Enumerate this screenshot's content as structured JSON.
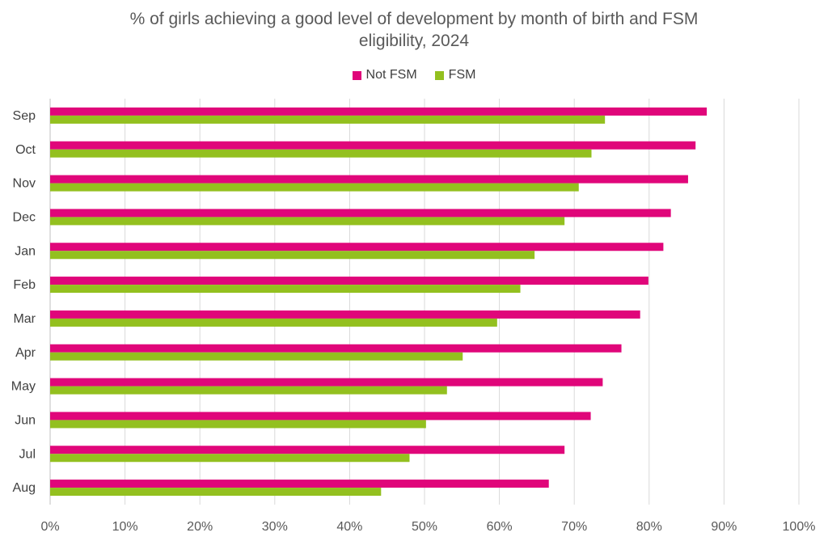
{
  "colors": {
    "not_fsm": "#e0067a",
    "fsm": "#93c01f",
    "grid": "#d9d9d9"
  },
  "chart_data": {
    "type": "bar",
    "orientation": "horizontal",
    "title_lines": [
      "% of girls achieving a good level of development by month of birth and FSM",
      "eligibility, 2024"
    ],
    "legend": {
      "position": "top"
    },
    "grid": true,
    "categories": [
      "Sep",
      "Oct",
      "Nov",
      "Dec",
      "Jan",
      "Feb",
      "Mar",
      "Apr",
      "May",
      "Jun",
      "Jul",
      "Aug"
    ],
    "series": [
      {
        "name": "Not FSM",
        "values": [
          87.7,
          86.2,
          85.2,
          82.9,
          81.9,
          79.9,
          78.8,
          76.3,
          73.8,
          72.2,
          68.7,
          66.6
        ]
      },
      {
        "name": "FSM",
        "values": [
          74.1,
          72.3,
          70.6,
          68.7,
          64.7,
          62.8,
          59.7,
          55.1,
          53.0,
          50.2,
          48.0,
          44.2
        ]
      }
    ],
    "xlim": [
      0,
      100
    ],
    "xticks": [
      "0%",
      "10%",
      "20%",
      "30%",
      "40%",
      "50%",
      "60%",
      "70%",
      "80%",
      "90%",
      "100%"
    ]
  }
}
